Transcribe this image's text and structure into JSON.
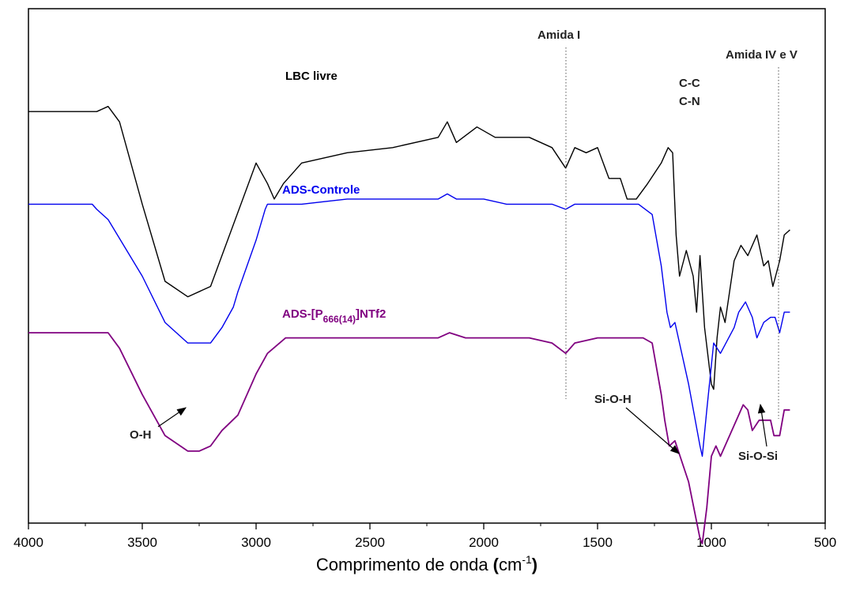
{
  "chart_data": {
    "type": "line",
    "xlabel_main": "Comprimento de onda ",
    "xlabel_paren_open": "(",
    "xlabel_unit": "cm",
    "xlabel_sup": "-1",
    "xlabel_paren_close": ")",
    "xlim": [
      4000,
      500
    ],
    "x_ticks": [
      4000,
      3500,
      3000,
      2500,
      2000,
      1500,
      1000,
      500
    ],
    "y_axis": "arbitrary transmittance, stacked (unlabeled)",
    "series": [
      {
        "name": "LBC livre",
        "color": "#000000",
        "points": [
          [
            4000,
            0.8
          ],
          [
            3700,
            0.8
          ],
          [
            3650,
            0.81
          ],
          [
            3600,
            0.78
          ],
          [
            3500,
            0.62
          ],
          [
            3400,
            0.47
          ],
          [
            3300,
            0.44
          ],
          [
            3200,
            0.46
          ],
          [
            3100,
            0.58
          ],
          [
            3000,
            0.7
          ],
          [
            2950,
            0.66
          ],
          [
            2920,
            0.63
          ],
          [
            2880,
            0.66
          ],
          [
            2800,
            0.7
          ],
          [
            2600,
            0.72
          ],
          [
            2400,
            0.73
          ],
          [
            2200,
            0.75
          ],
          [
            2160,
            0.78
          ],
          [
            2120,
            0.74
          ],
          [
            2030,
            0.77
          ],
          [
            1950,
            0.75
          ],
          [
            1800,
            0.75
          ],
          [
            1700,
            0.73
          ],
          [
            1640,
            0.69
          ],
          [
            1600,
            0.73
          ],
          [
            1550,
            0.72
          ],
          [
            1500,
            0.73
          ],
          [
            1450,
            0.67
          ],
          [
            1400,
            0.67
          ],
          [
            1370,
            0.63
          ],
          [
            1330,
            0.63
          ],
          [
            1280,
            0.66
          ],
          [
            1220,
            0.7
          ],
          [
            1190,
            0.73
          ],
          [
            1170,
            0.72
          ],
          [
            1155,
            0.56
          ],
          [
            1140,
            0.48
          ],
          [
            1110,
            0.53
          ],
          [
            1080,
            0.48
          ],
          [
            1065,
            0.41
          ],
          [
            1050,
            0.52
          ],
          [
            1030,
            0.38
          ],
          [
            1000,
            0.27
          ],
          [
            990,
            0.26
          ],
          [
            975,
            0.36
          ],
          [
            960,
            0.42
          ],
          [
            940,
            0.39
          ],
          [
            900,
            0.51
          ],
          [
            870,
            0.54
          ],
          [
            840,
            0.52
          ],
          [
            800,
            0.56
          ],
          [
            770,
            0.5
          ],
          [
            750,
            0.51
          ],
          [
            730,
            0.46
          ],
          [
            700,
            0.51
          ],
          [
            680,
            0.56
          ],
          [
            655,
            0.57
          ]
        ]
      },
      {
        "name": "ADS-Controle",
        "color": "#0000ee",
        "points": [
          [
            4000,
            0.62
          ],
          [
            3720,
            0.62
          ],
          [
            3700,
            0.61
          ],
          [
            3650,
            0.59
          ],
          [
            3500,
            0.48
          ],
          [
            3400,
            0.39
          ],
          [
            3300,
            0.35
          ],
          [
            3200,
            0.35
          ],
          [
            3150,
            0.38
          ],
          [
            3100,
            0.42
          ],
          [
            3080,
            0.45
          ],
          [
            3000,
            0.55
          ],
          [
            2960,
            0.61
          ],
          [
            2950,
            0.62
          ],
          [
            2800,
            0.62
          ],
          [
            2600,
            0.63
          ],
          [
            2400,
            0.63
          ],
          [
            2300,
            0.63
          ],
          [
            2200,
            0.63
          ],
          [
            2160,
            0.64
          ],
          [
            2120,
            0.63
          ],
          [
            2000,
            0.63
          ],
          [
            1900,
            0.62
          ],
          [
            1700,
            0.62
          ],
          [
            1640,
            0.61
          ],
          [
            1600,
            0.62
          ],
          [
            1400,
            0.62
          ],
          [
            1320,
            0.62
          ],
          [
            1260,
            0.6
          ],
          [
            1220,
            0.5
          ],
          [
            1195,
            0.41
          ],
          [
            1180,
            0.38
          ],
          [
            1160,
            0.39
          ],
          [
            1100,
            0.27
          ],
          [
            1050,
            0.15
          ],
          [
            1040,
            0.13
          ],
          [
            1020,
            0.22
          ],
          [
            990,
            0.35
          ],
          [
            960,
            0.33
          ],
          [
            900,
            0.38
          ],
          [
            880,
            0.41
          ],
          [
            850,
            0.43
          ],
          [
            820,
            0.4
          ],
          [
            800,
            0.36
          ],
          [
            770,
            0.39
          ],
          [
            740,
            0.4
          ],
          [
            720,
            0.4
          ],
          [
            700,
            0.37
          ],
          [
            680,
            0.41
          ],
          [
            655,
            0.41
          ]
        ]
      },
      {
        "name": "ADS-[P666(14)]NTf2",
        "color": "#800080",
        "points": [
          [
            4000,
            0.37
          ],
          [
            3680,
            0.37
          ],
          [
            3650,
            0.37
          ],
          [
            3600,
            0.34
          ],
          [
            3500,
            0.25
          ],
          [
            3400,
            0.17
          ],
          [
            3300,
            0.14
          ],
          [
            3250,
            0.14
          ],
          [
            3200,
            0.15
          ],
          [
            3150,
            0.18
          ],
          [
            3080,
            0.21
          ],
          [
            3000,
            0.29
          ],
          [
            2950,
            0.33
          ],
          [
            2870,
            0.36
          ],
          [
            2800,
            0.36
          ],
          [
            2500,
            0.36
          ],
          [
            2200,
            0.36
          ],
          [
            2150,
            0.37
          ],
          [
            2080,
            0.36
          ],
          [
            1800,
            0.36
          ],
          [
            1700,
            0.35
          ],
          [
            1640,
            0.33
          ],
          [
            1600,
            0.35
          ],
          [
            1500,
            0.36
          ],
          [
            1300,
            0.36
          ],
          [
            1260,
            0.35
          ],
          [
            1220,
            0.25
          ],
          [
            1205,
            0.2
          ],
          [
            1185,
            0.15
          ],
          [
            1160,
            0.16
          ],
          [
            1100,
            0.08
          ],
          [
            1050,
            -0.03
          ],
          [
            1040,
            -0.04
          ],
          [
            1020,
            0.03
          ],
          [
            1000,
            0.13
          ],
          [
            980,
            0.15
          ],
          [
            960,
            0.13
          ],
          [
            900,
            0.19
          ],
          [
            860,
            0.23
          ],
          [
            840,
            0.22
          ],
          [
            820,
            0.18
          ],
          [
            790,
            0.2
          ],
          [
            760,
            0.2
          ],
          [
            740,
            0.2
          ],
          [
            725,
            0.17
          ],
          [
            700,
            0.17
          ],
          [
            680,
            0.22
          ],
          [
            655,
            0.22
          ]
        ]
      }
    ],
    "series_labels": [
      {
        "text": "LBC livre",
        "color": "#000000"
      },
      {
        "text": "ADS-Controle",
        "color": "#0000ee"
      },
      {
        "prefix": "ADS-[P",
        "sub": "666(14)",
        "suffix": "]NTf2",
        "color": "#800080"
      }
    ],
    "annotations": {
      "amida1": "Amida I",
      "amida45": "Amida IV e V",
      "cc": "C-C",
      "cn": "C-N",
      "oh": "O-H",
      "sioh": "Si-O-H",
      "siosi": "Si-O-Si"
    }
  }
}
